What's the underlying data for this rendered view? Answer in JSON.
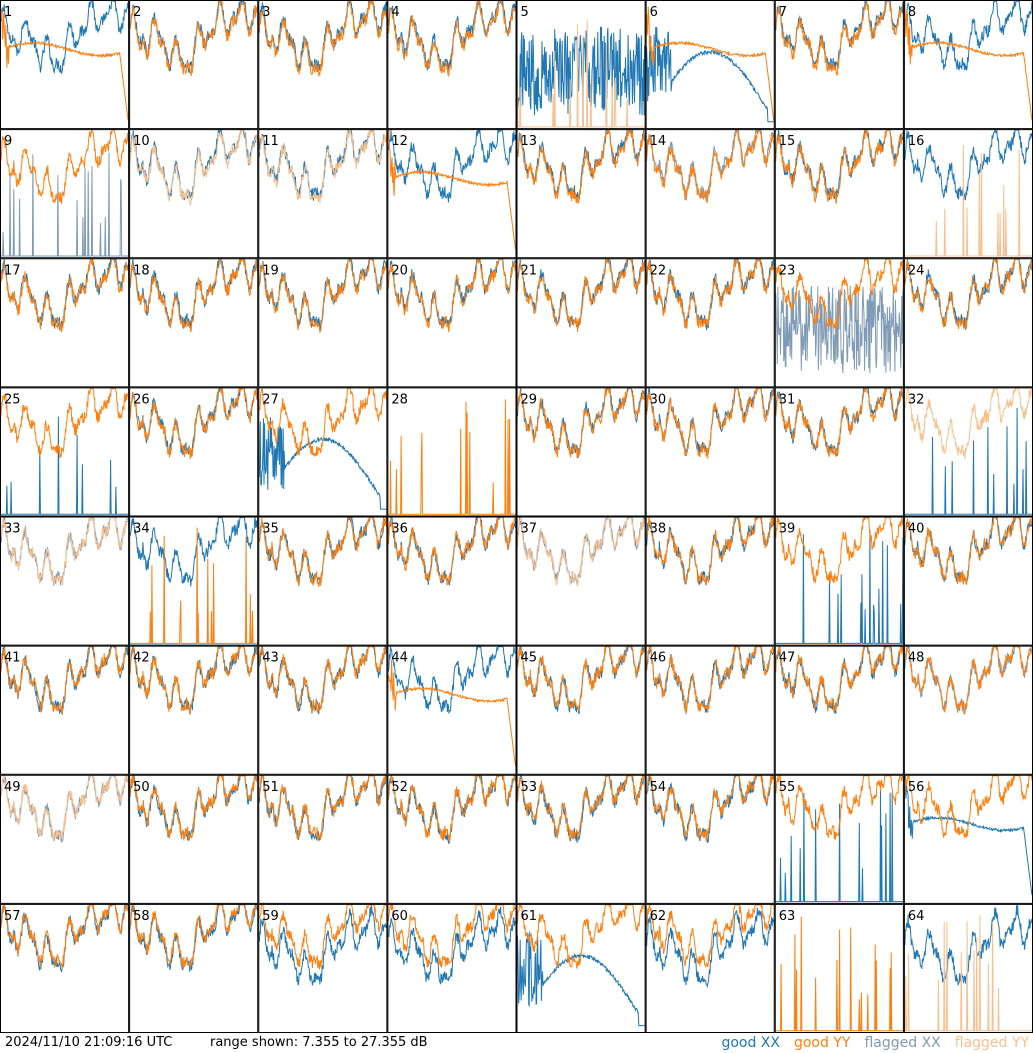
{
  "footer": {
    "timestamp": "2024/11/10 21:09:16 UTC",
    "range_text": "range shown: 7.355 to 27.355 dB"
  },
  "legend": {
    "good_xx": "good XX",
    "good_yy": "good YY",
    "flagged_xx": "flagged XX",
    "flagged_yy": "flagged YY"
  },
  "colors": {
    "good_xx": "#1f77b4",
    "good_yy": "#ff7f0e",
    "flagged_xx": "#7f9bb5",
    "flagged_yy": "#f8c08f",
    "grid_line": "#000000",
    "background": "#ffffff"
  },
  "chart_data": {
    "type": "line",
    "ylim": [
      7.355,
      27.355
    ],
    "yunit": "dB",
    "grid_rows": 8,
    "grid_cols": 8,
    "panels": [
      {
        "id": "1",
        "xx": "good",
        "yy": "good",
        "xx_kind": "normal",
        "yy_kind": "plateau"
      },
      {
        "id": "2",
        "xx": "good",
        "yy": "good",
        "xx_kind": "normal",
        "yy_kind": "normal"
      },
      {
        "id": "3",
        "xx": "good",
        "yy": "good",
        "xx_kind": "normal",
        "yy_kind": "normal"
      },
      {
        "id": "4",
        "xx": "good",
        "yy": "good",
        "xx_kind": "normal",
        "yy_kind": "normal"
      },
      {
        "id": "5",
        "xx": "good",
        "yy": "flagged",
        "xx_kind": "noisy",
        "yy_kind": "spikes"
      },
      {
        "id": "6",
        "xx": "good",
        "yy": "good",
        "xx_kind": "bump",
        "yy_kind": "plateau"
      },
      {
        "id": "7",
        "xx": "good",
        "yy": "good",
        "xx_kind": "normal",
        "yy_kind": "normal"
      },
      {
        "id": "8",
        "xx": "good",
        "yy": "good",
        "xx_kind": "normal",
        "yy_kind": "plateau"
      },
      {
        "id": "9",
        "xx": "flagged",
        "yy": "good",
        "xx_kind": "spikes",
        "yy_kind": "normal"
      },
      {
        "id": "10",
        "xx": "good",
        "yy": "flagged",
        "xx_kind": "normal",
        "yy_kind": "normal"
      },
      {
        "id": "11",
        "xx": "good",
        "yy": "flagged",
        "xx_kind": "normal",
        "yy_kind": "normal"
      },
      {
        "id": "12",
        "xx": "good",
        "yy": "good",
        "xx_kind": "normal",
        "yy_kind": "plateau"
      },
      {
        "id": "13",
        "xx": "good",
        "yy": "good",
        "xx_kind": "normal",
        "yy_kind": "normal"
      },
      {
        "id": "14",
        "xx": "flagged",
        "yy": "good",
        "xx_kind": "normal",
        "yy_kind": "normal"
      },
      {
        "id": "15",
        "xx": "good",
        "yy": "good",
        "xx_kind": "normal",
        "yy_kind": "normal"
      },
      {
        "id": "16",
        "xx": "good",
        "yy": "flagged",
        "xx_kind": "normal",
        "yy_kind": "spikes"
      },
      {
        "id": "17",
        "xx": "good",
        "yy": "good",
        "xx_kind": "normal",
        "yy_kind": "normal"
      },
      {
        "id": "18",
        "xx": "good",
        "yy": "good",
        "xx_kind": "normal",
        "yy_kind": "normal"
      },
      {
        "id": "19",
        "xx": "good",
        "yy": "good",
        "xx_kind": "normal",
        "yy_kind": "normal"
      },
      {
        "id": "20",
        "xx": "good",
        "yy": "good",
        "xx_kind": "normal",
        "yy_kind": "normal"
      },
      {
        "id": "21",
        "xx": "good",
        "yy": "good",
        "xx_kind": "normal",
        "yy_kind": "normal"
      },
      {
        "id": "22",
        "xx": "good",
        "yy": "good",
        "xx_kind": "normal",
        "yy_kind": "normal"
      },
      {
        "id": "23",
        "xx": "flagged",
        "yy": "good",
        "xx_kind": "noisy",
        "yy_kind": "normal"
      },
      {
        "id": "24",
        "xx": "good",
        "yy": "good",
        "xx_kind": "normal",
        "yy_kind": "normal"
      },
      {
        "id": "25",
        "xx": "good",
        "yy": "good",
        "xx_kind": "spikes",
        "yy_kind": "normal"
      },
      {
        "id": "26",
        "xx": "good",
        "yy": "good",
        "xx_kind": "normal",
        "yy_kind": "normal"
      },
      {
        "id": "27",
        "xx": "good",
        "yy": "good",
        "xx_kind": "bump",
        "yy_kind": "normal"
      },
      {
        "id": "28",
        "xx": "good",
        "yy": "good",
        "xx_kind": "none",
        "yy_kind": "spikes"
      },
      {
        "id": "29",
        "xx": "good",
        "yy": "good",
        "xx_kind": "normal",
        "yy_kind": "normal"
      },
      {
        "id": "30",
        "xx": "good",
        "yy": "good",
        "xx_kind": "normal",
        "yy_kind": "normal"
      },
      {
        "id": "31",
        "xx": "good",
        "yy": "good",
        "xx_kind": "normal",
        "yy_kind": "normal"
      },
      {
        "id": "32",
        "xx": "good",
        "yy": "flagged",
        "xx_kind": "spikes",
        "yy_kind": "normal"
      },
      {
        "id": "33",
        "xx": "flagged",
        "yy": "flagged",
        "xx_kind": "normal",
        "yy_kind": "normal"
      },
      {
        "id": "34",
        "xx": "good",
        "yy": "good",
        "xx_kind": "normal",
        "yy_kind": "spikes"
      },
      {
        "id": "35",
        "xx": "good",
        "yy": "good",
        "xx_kind": "normal",
        "yy_kind": "normal"
      },
      {
        "id": "36",
        "xx": "good",
        "yy": "good",
        "xx_kind": "normal",
        "yy_kind": "normal"
      },
      {
        "id": "37",
        "xx": "flagged",
        "yy": "flagged",
        "xx_kind": "normal",
        "yy_kind": "normal"
      },
      {
        "id": "38",
        "xx": "good",
        "yy": "good",
        "xx_kind": "normal",
        "yy_kind": "normal"
      },
      {
        "id": "39",
        "xx": "good",
        "yy": "good",
        "xx_kind": "spikes",
        "yy_kind": "normal"
      },
      {
        "id": "40",
        "xx": "good",
        "yy": "good",
        "xx_kind": "normal",
        "yy_kind": "normal"
      },
      {
        "id": "41",
        "xx": "good",
        "yy": "good",
        "xx_kind": "normal",
        "yy_kind": "normal"
      },
      {
        "id": "42",
        "xx": "good",
        "yy": "good",
        "xx_kind": "normal",
        "yy_kind": "normal"
      },
      {
        "id": "43",
        "xx": "good",
        "yy": "good",
        "xx_kind": "normal",
        "yy_kind": "normal"
      },
      {
        "id": "44",
        "xx": "good",
        "yy": "good",
        "xx_kind": "normal",
        "yy_kind": "plateau"
      },
      {
        "id": "45",
        "xx": "good",
        "yy": "good",
        "xx_kind": "normal",
        "yy_kind": "normal"
      },
      {
        "id": "46",
        "xx": "good",
        "yy": "good",
        "xx_kind": "normal",
        "yy_kind": "normal"
      },
      {
        "id": "47",
        "xx": "good",
        "yy": "good",
        "xx_kind": "normal",
        "yy_kind": "normal"
      },
      {
        "id": "48",
        "xx": "flagged",
        "yy": "good",
        "xx_kind": "normal",
        "yy_kind": "normal"
      },
      {
        "id": "49",
        "xx": "flagged",
        "yy": "flagged",
        "xx_kind": "normal",
        "yy_kind": "normal"
      },
      {
        "id": "50",
        "xx": "good",
        "yy": "good",
        "xx_kind": "normal",
        "yy_kind": "normal"
      },
      {
        "id": "51",
        "xx": "good",
        "yy": "good",
        "xx_kind": "normal",
        "yy_kind": "normal"
      },
      {
        "id": "52",
        "xx": "good",
        "yy": "good",
        "xx_kind": "normal",
        "yy_kind": "normal"
      },
      {
        "id": "53",
        "xx": "good",
        "yy": "good",
        "xx_kind": "normal",
        "yy_kind": "normal"
      },
      {
        "id": "54",
        "xx": "good",
        "yy": "good",
        "xx_kind": "normal",
        "yy_kind": "normal"
      },
      {
        "id": "55",
        "xx": "good",
        "yy": "good",
        "xx_kind": "spikes",
        "yy_kind": "normal"
      },
      {
        "id": "56",
        "xx": "good",
        "yy": "good",
        "xx_kind": "plateau",
        "yy_kind": "normal"
      },
      {
        "id": "57",
        "xx": "good",
        "yy": "good",
        "xx_kind": "normal",
        "yy_kind": "normal"
      },
      {
        "id": "58",
        "xx": "good",
        "yy": "good",
        "xx_kind": "normal",
        "yy_kind": "normal"
      },
      {
        "id": "59",
        "xx": "good",
        "yy": "good",
        "xx_kind": "normal",
        "yy_kind": "normal"
      },
      {
        "id": "60",
        "xx": "good",
        "yy": "good",
        "xx_kind": "normal",
        "yy_kind": "normal"
      },
      {
        "id": "61",
        "xx": "good",
        "yy": "good",
        "xx_kind": "bump",
        "yy_kind": "normal"
      },
      {
        "id": "62",
        "xx": "good",
        "yy": "good",
        "xx_kind": "normal",
        "yy_kind": "normal"
      },
      {
        "id": "63",
        "xx": "good",
        "yy": "good",
        "xx_kind": "none",
        "yy_kind": "spikes"
      },
      {
        "id": "64",
        "xx": "good",
        "yy": "flagged",
        "xx_kind": "normal",
        "yy_kind": "spikes"
      }
    ]
  }
}
